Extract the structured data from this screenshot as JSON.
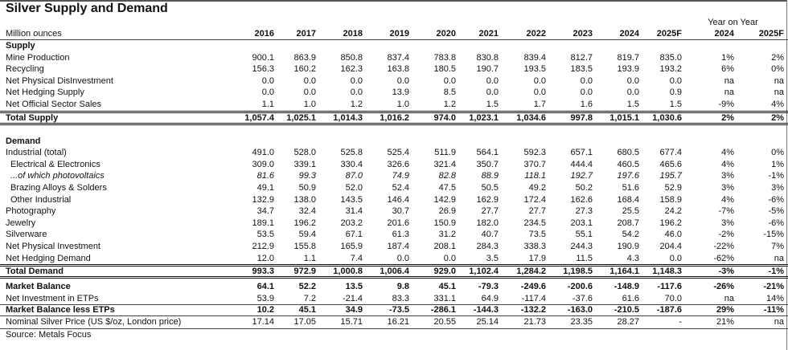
{
  "title": "Silver Supply and Demand",
  "yoy_header": "Year on Year",
  "header": {
    "label": "Million ounces",
    "columns": [
      "2016",
      "2017",
      "2018",
      "2019",
      "2020",
      "2021",
      "2022",
      "2023",
      "2024",
      "2025F",
      "2024",
      "2025F"
    ]
  },
  "rows": [
    {
      "label": "Supply",
      "type": "section",
      "values": []
    },
    {
      "label": "Mine Production",
      "type": "normal",
      "values": [
        "900.1",
        "863.9",
        "850.8",
        "837.4",
        "783.8",
        "830.8",
        "839.4",
        "812.7",
        "819.7",
        "835.0",
        "1%",
        "2%"
      ]
    },
    {
      "label": "Recycling",
      "type": "normal",
      "values": [
        "156.3",
        "160.2",
        "162.3",
        "163.8",
        "180.5",
        "190.7",
        "193.5",
        "183.5",
        "193.9",
        "193.2",
        "6%",
        "0%"
      ]
    },
    {
      "label": "Net Physical DisInvestment",
      "type": "normal",
      "values": [
        "0.0",
        "0.0",
        "0.0",
        "0.0",
        "0.0",
        "0.0",
        "0.0",
        "0.0",
        "0.0",
        "0.0",
        "na",
        "na"
      ]
    },
    {
      "label": "Net Hedging Supply",
      "type": "normal",
      "values": [
        "0.0",
        "0.0",
        "0.0",
        "13.9",
        "8.5",
        "0.0",
        "0.0",
        "0.0",
        "0.0",
        "0.9",
        "na",
        "na"
      ]
    },
    {
      "label": "Net Official Sector Sales",
      "type": "normal",
      "values": [
        "1.1",
        "1.0",
        "1.2",
        "1.0",
        "1.2",
        "1.5",
        "1.7",
        "1.6",
        "1.5",
        "1.5",
        "-9%",
        "4%"
      ]
    },
    {
      "label": "Total Supply",
      "type": "total",
      "values": [
        "1,057.4",
        "1,025.1",
        "1,014.3",
        "1,016.2",
        "974.0",
        "1,023.1",
        "1,034.6",
        "997.8",
        "1,015.1",
        "1,030.6",
        "2%",
        "2%"
      ]
    },
    {
      "label": "Demand",
      "type": "section",
      "values": []
    },
    {
      "label": "Industrial (total)",
      "type": "normal",
      "values": [
        "491.0",
        "528.0",
        "525.8",
        "525.4",
        "511.9",
        "564.1",
        "592.3",
        "657.1",
        "680.5",
        "677.4",
        "4%",
        "0%"
      ]
    },
    {
      "label": "Electrical & Electronics",
      "type": "indent",
      "values": [
        "309.0",
        "339.1",
        "330.4",
        "326.6",
        "321.4",
        "350.7",
        "370.7",
        "444.4",
        "460.5",
        "465.6",
        "4%",
        "1%"
      ]
    },
    {
      "label": "...of which photovoltaics",
      "type": "italic",
      "values": [
        "81.6",
        "99.3",
        "87.0",
        "74.9",
        "82.8",
        "88.9",
        "118.1",
        "192.7",
        "197.6",
        "195.7",
        "3%",
        "-1%"
      ]
    },
    {
      "label": "Brazing Alloys & Solders",
      "type": "indent",
      "values": [
        "49.1",
        "50.9",
        "52.0",
        "52.4",
        "47.5",
        "50.5",
        "49.2",
        "50.2",
        "51.6",
        "52.9",
        "3%",
        "3%"
      ]
    },
    {
      "label": "Other Industrial",
      "type": "indent",
      "values": [
        "132.9",
        "138.0",
        "143.5",
        "146.4",
        "142.9",
        "162.9",
        "172.4",
        "162.6",
        "168.4",
        "158.9",
        "4%",
        "-6%"
      ]
    },
    {
      "label": "Photography",
      "type": "normal",
      "values": [
        "34.7",
        "32.4",
        "31.4",
        "30.7",
        "26.9",
        "27.7",
        "27.7",
        "27.3",
        "25.5",
        "24.2",
        "-7%",
        "-5%"
      ]
    },
    {
      "label": "Jewelry",
      "type": "normal",
      "values": [
        "189.1",
        "196.2",
        "203.2",
        "201.6",
        "150.9",
        "182.0",
        "234.5",
        "203.1",
        "208.7",
        "196.2",
        "3%",
        "-6%"
      ]
    },
    {
      "label": "Silverware",
      "type": "normal",
      "values": [
        "53.5",
        "59.4",
        "67.1",
        "61.3",
        "31.2",
        "40.7",
        "73.5",
        "55.1",
        "54.2",
        "46.0",
        "-2%",
        "-15%"
      ]
    },
    {
      "label": "Net Physical Investment",
      "type": "normal",
      "values": [
        "212.9",
        "155.8",
        "165.9",
        "187.4",
        "208.1",
        "284.3",
        "338.3",
        "244.3",
        "190.9",
        "204.4",
        "-22%",
        "7%"
      ]
    },
    {
      "label": "Net Hedging Demand",
      "type": "normal",
      "values": [
        "12.0",
        "1.1",
        "7.4",
        "0.0",
        "0.0",
        "3.5",
        "17.9",
        "11.5",
        "4.3",
        "0.0",
        "-62%",
        "na"
      ]
    },
    {
      "label": "Total Demand",
      "type": "total",
      "values": [
        "993.3",
        "972.9",
        "1,000.8",
        "1,006.4",
        "929.0",
        "1,102.4",
        "1,284.2",
        "1,198.5",
        "1,164.1",
        "1,148.3",
        "-3%",
        "-1%"
      ]
    },
    {
      "label": "Market Balance",
      "type": "bold",
      "values": [
        "64.1",
        "52.2",
        "13.5",
        "9.8",
        "45.1",
        "-79.3",
        "-249.6",
        "-200.6",
        "-148.9",
        "-117.6",
        "-26%",
        "-21%"
      ]
    },
    {
      "label": "Net Investment in ETPs",
      "type": "normal",
      "values": [
        "53.9",
        "7.2",
        "-21.4",
        "83.3",
        "331.1",
        "64.9",
        "-117.4",
        "-37.6",
        "61.6",
        "70.0",
        "na",
        "14%"
      ]
    },
    {
      "label": "Market Balance less ETPs",
      "type": "balance-less",
      "values": [
        "10.2",
        "45.1",
        "34.9",
        "-73.5",
        "-286.1",
        "-144.3",
        "-132.2",
        "-163.0",
        "-210.5",
        "-187.6",
        "29%",
        "-11%"
      ]
    },
    {
      "label": "Nominal Silver Price (US $/oz, London price)",
      "type": "price",
      "values": [
        "17.14",
        "17.05",
        "15.71",
        "16.21",
        "20.55",
        "25.14",
        "21.73",
        "23.35",
        "28.27",
        "-",
        "21%",
        "na"
      ]
    }
  ],
  "source": "Source: Metals Focus"
}
